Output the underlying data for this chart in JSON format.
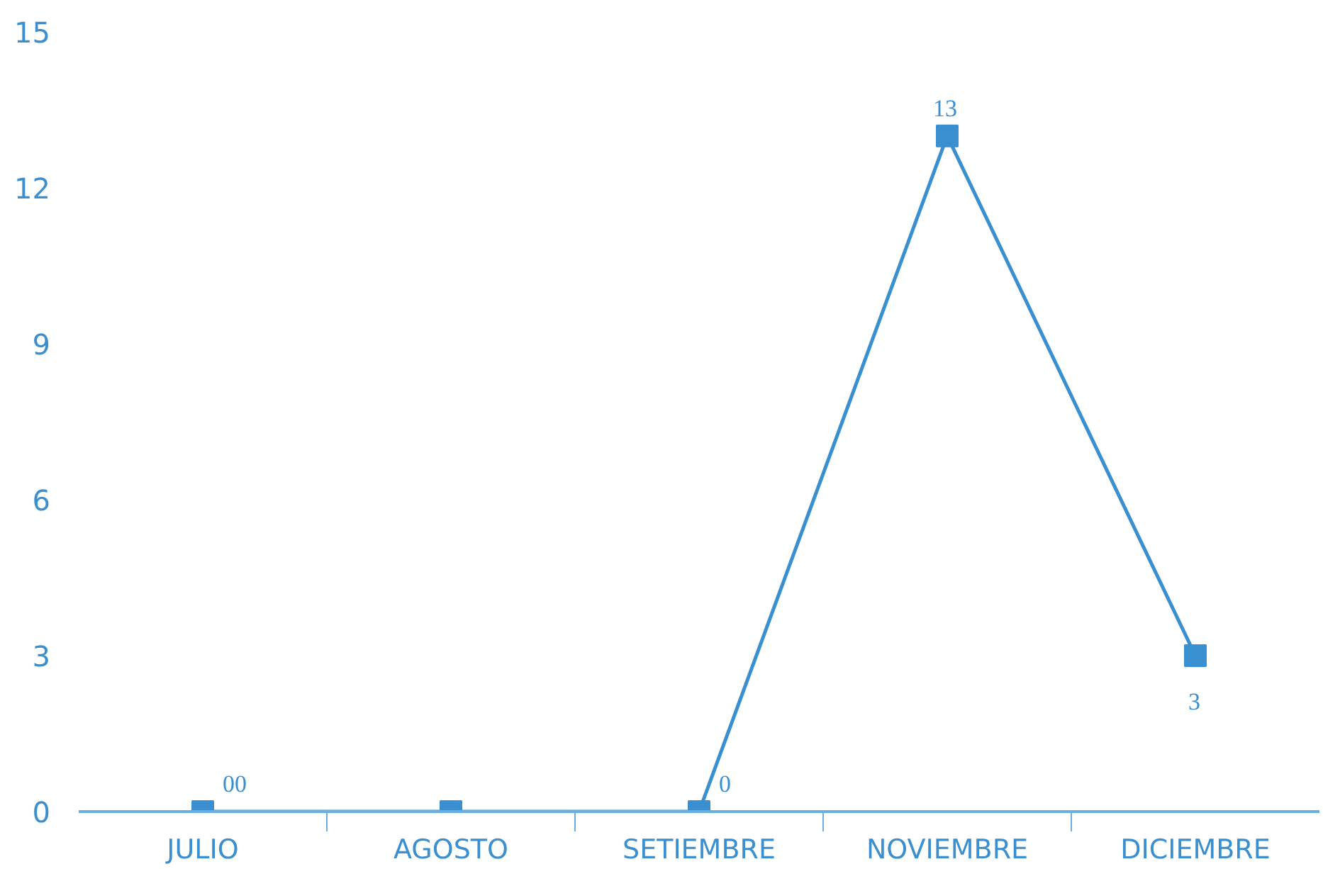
{
  "chart_data": {
    "type": "line",
    "categories": [
      "JULIO",
      "AGOSTO",
      "SETIEMBRE",
      "NOVIEMBRE",
      "DICIEMBRE"
    ],
    "series": [
      {
        "color": "#3a8fd0",
        "values": [
          0,
          0,
          0,
          13,
          3
        ],
        "value_labels": [
          "00",
          null,
          "0",
          "13",
          "3"
        ]
      }
    ],
    "ylim": [
      0,
      15
    ],
    "yticks": [
      0,
      3,
      6,
      9,
      12,
      15
    ],
    "grid": false,
    "marker": "square",
    "line_style": "solid"
  }
}
